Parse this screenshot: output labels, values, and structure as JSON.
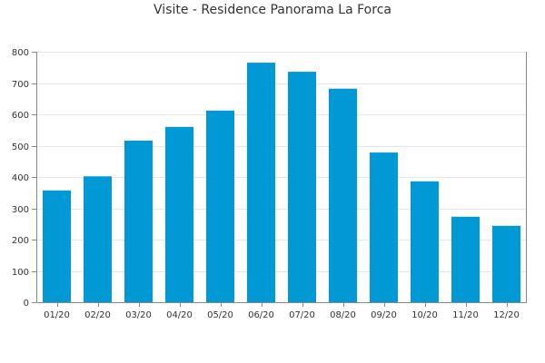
{
  "chart_data": {
    "type": "bar",
    "title": "Visite - Residence Panorama La Forca",
    "xlabel": "",
    "ylabel": "",
    "categories": [
      "01/20",
      "02/20",
      "03/20",
      "04/20",
      "05/20",
      "06/20",
      "07/20",
      "08/20",
      "09/20",
      "10/20",
      "11/20",
      "12/20"
    ],
    "values": [
      357,
      402,
      516,
      560,
      612,
      765,
      736,
      682,
      478,
      386,
      273,
      244
    ],
    "ylim": [
      0,
      800
    ],
    "yticks": [
      0,
      100,
      200,
      300,
      400,
      500,
      600,
      700,
      800
    ],
    "grid": true,
    "bar_color": "#0099d6"
  }
}
